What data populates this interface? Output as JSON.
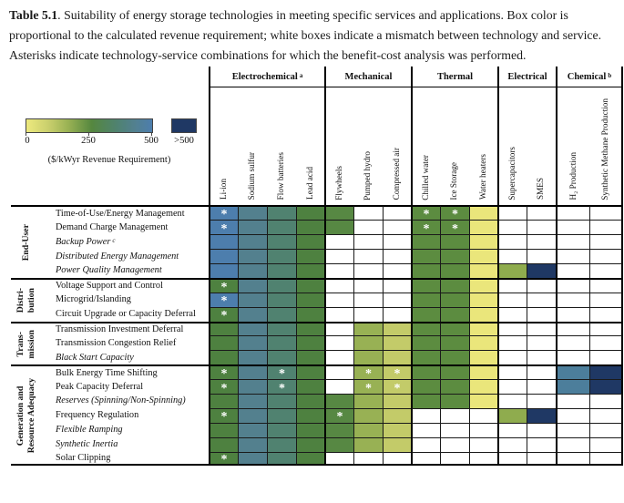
{
  "figure": {
    "title_label": "Table 5.1",
    "title_text": ". Suitability of energy storage technologies in meeting specific services and applications. Box color is proportional to the calculated revenue requirement; white boxes indicate a mismatch between technology and service. Asterisks indicate technology-service combinations for which the benefit-cost analysis was performed."
  },
  "legend": {
    "ticks": [
      "0",
      "250",
      "500"
    ],
    "over_label": ">500",
    "caption": "($/kWyr Revenue Requirement)",
    "gradient_stops": [
      "#EDE97E 0%",
      "#C8CE6C 18%",
      "#9AB254 33%",
      "#55873F 52%",
      "#4F8270 72%",
      "#52808F 86%",
      "#4D7EAD 100%"
    ],
    "over_color": "#1F3864"
  },
  "palette": {
    "B": "#4D7EAD",
    "S": "#53808E",
    "T": "#508270",
    "G": "#4E8140",
    "G2": "#578843",
    "G3": "#5C8C40",
    "LG": "#98B154",
    "YG": "#C3CB69",
    "Y": "#EAE67B",
    "SG": "#8FAC4E",
    "N": "#1F3864",
    "HB": "#4C7E9B",
    "W": "#FFFFFF"
  },
  "columns": {
    "groups": [
      {
        "label": "Electrochemical",
        "sup": "a",
        "cols": [
          "Li-ion",
          "Sodium sulfur",
          "Flow batteries",
          "Lead acid"
        ]
      },
      {
        "label": "Mechanical",
        "sup": "",
        "cols": [
          "Flywheels",
          "Pumped hydro",
          "Compressed air"
        ]
      },
      {
        "label": "Thermal",
        "sup": "",
        "cols": [
          "Chilled water",
          "Ice Storage",
          "Water heaters"
        ]
      },
      {
        "label": "Electrical",
        "sup": "",
        "cols": [
          "Supercapacitors",
          "SMES"
        ]
      },
      {
        "label": "Chemical",
        "sup": "b",
        "cols": [
          "H₂ Production",
          "Synthetic Methane Production"
        ]
      }
    ]
  },
  "matrix": {
    "row_groups": [
      {
        "label": "End-User",
        "rows": [
          {
            "label": "Time-of-Use/Energy Management",
            "italic": false,
            "sup": "",
            "cells": [
              "B*",
              "S",
              "T",
              "G",
              "G2",
              "W",
              "W",
              "G3*",
              "G3*",
              "Y",
              "W",
              "W",
              "W",
              "W"
            ]
          },
          {
            "label": "Demand Charge Management",
            "italic": false,
            "sup": "",
            "cells": [
              "B*",
              "S",
              "T",
              "G",
              "G2",
              "W",
              "W",
              "G3*",
              "G3*",
              "Y",
              "W",
              "W",
              "W",
              "W"
            ]
          },
          {
            "label": "Backup Power",
            "italic": true,
            "sup": "c",
            "cells": [
              "B",
              "S",
              "T",
              "G",
              "W",
              "W",
              "W",
              "G3",
              "G3",
              "Y",
              "W",
              "W",
              "W",
              "W"
            ]
          },
          {
            "label": "Distributed Energy Management",
            "italic": true,
            "sup": "",
            "cells": [
              "B",
              "S",
              "T",
              "G",
              "W",
              "W",
              "W",
              "G3",
              "G3",
              "Y",
              "W",
              "W",
              "W",
              "W"
            ]
          },
          {
            "label": "Power Quality Management",
            "italic": true,
            "sup": "",
            "cells": [
              "B",
              "S",
              "T",
              "G",
              "W",
              "W",
              "W",
              "G3",
              "G3",
              "Y",
              "SG",
              "N",
              "W",
              "W"
            ]
          }
        ]
      },
      {
        "label": "Distri-\nbution",
        "rows": [
          {
            "label": "Voltage Support and Control",
            "italic": false,
            "sup": "",
            "cells": [
              "G*",
              "S",
              "T",
              "G",
              "W",
              "W",
              "W",
              "G3",
              "G3",
              "Y",
              "W",
              "W",
              "W",
              "W"
            ]
          },
          {
            "label": "Microgrid/Islanding",
            "italic": false,
            "sup": "",
            "cells": [
              "B*",
              "S",
              "T",
              "G",
              "W",
              "W",
              "W",
              "G3",
              "G3",
              "Y",
              "W",
              "W",
              "W",
              "W"
            ]
          },
          {
            "label": "Circuit Upgrade or Capacity Deferral",
            "italic": false,
            "sup": "",
            "cells": [
              "G*",
              "S",
              "T",
              "G",
              "W",
              "W",
              "W",
              "G3",
              "G3",
              "Y",
              "W",
              "W",
              "W",
              "W"
            ]
          }
        ]
      },
      {
        "label": "Trans-\nmission",
        "rows": [
          {
            "label": "Transmission Investment Deferral",
            "italic": false,
            "sup": "",
            "cells": [
              "G",
              "S",
              "T",
              "G",
              "W",
              "LG",
              "YG",
              "G3",
              "G3",
              "Y",
              "W",
              "W",
              "W",
              "W"
            ]
          },
          {
            "label": "Transmission Congestion Relief",
            "italic": false,
            "sup": "",
            "cells": [
              "G",
              "S",
              "T",
              "G",
              "W",
              "LG",
              "YG",
              "G3",
              "G3",
              "Y",
              "W",
              "W",
              "W",
              "W"
            ]
          },
          {
            "label": "Black Start Capacity",
            "italic": true,
            "sup": "",
            "cells": [
              "G",
              "S",
              "T",
              "G",
              "W",
              "LG",
              "YG",
              "G3",
              "G3",
              "Y",
              "W",
              "W",
              "W",
              "W"
            ]
          }
        ]
      },
      {
        "label": "Generation and\nResource Adequacy",
        "rows": [
          {
            "label": "Bulk Energy Time Shifting",
            "italic": false,
            "sup": "",
            "cells": [
              "G*",
              "S",
              "T*",
              "G",
              "W",
              "LG*",
              "YG*",
              "G3",
              "G3",
              "Y",
              "W",
              "W",
              "HB",
              "N"
            ]
          },
          {
            "label": "Peak Capacity Deferral",
            "italic": false,
            "sup": "",
            "cells": [
              "G*",
              "S",
              "T*",
              "G",
              "W",
              "LG*",
              "YG*",
              "G3",
              "G3",
              "Y",
              "W",
              "W",
              "HB",
              "N"
            ]
          },
          {
            "label": "Reserves (Spinning/Non-Spinning)",
            "italic": true,
            "sup": "",
            "cells": [
              "G",
              "S",
              "T",
              "G",
              "G2",
              "LG",
              "YG",
              "G3",
              "G3",
              "Y",
              "W",
              "W",
              "W",
              "W"
            ]
          },
          {
            "label": "Frequency Regulation",
            "italic": false,
            "sup": "",
            "cells": [
              "G*",
              "S",
              "T",
              "G",
              "G2*",
              "LG",
              "YG",
              "W",
              "W",
              "W",
              "SG",
              "N",
              "W",
              "W"
            ]
          },
          {
            "label": "Flexible Ramping",
            "italic": true,
            "sup": "",
            "cells": [
              "G",
              "S",
              "T",
              "G",
              "G2",
              "LG",
              "YG",
              "W",
              "W",
              "W",
              "W",
              "W",
              "W",
              "W"
            ]
          },
          {
            "label": "Synthetic Inertia",
            "italic": true,
            "sup": "",
            "cells": [
              "G",
              "S",
              "T",
              "G",
              "G2",
              "LG",
              "YG",
              "W",
              "W",
              "W",
              "W",
              "W",
              "W",
              "W"
            ]
          },
          {
            "label": "Solar Clipping",
            "italic": false,
            "sup": "",
            "cells": [
              "G*",
              "S",
              "T",
              "G",
              "W",
              "W",
              "W",
              "W",
              "W",
              "W",
              "W",
              "W",
              "W",
              "W"
            ]
          }
        ]
      }
    ]
  }
}
